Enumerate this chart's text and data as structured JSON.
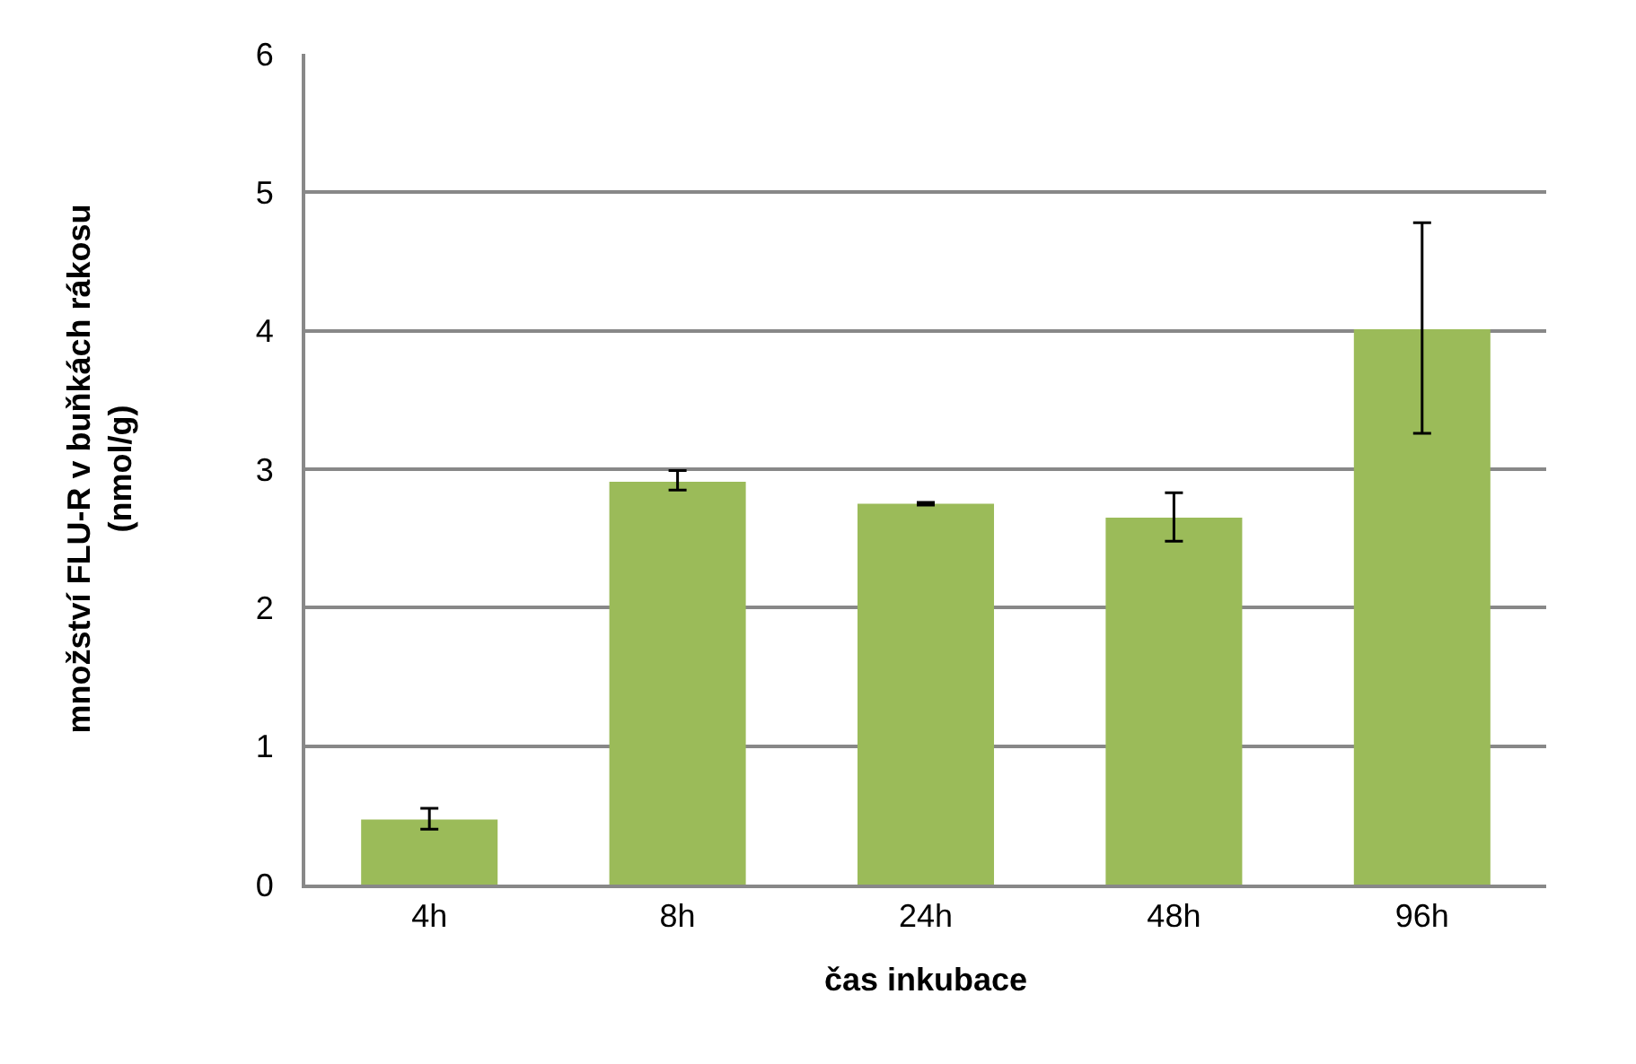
{
  "chart_data": {
    "type": "bar",
    "xlabel": "čas inkubace",
    "ylabel": "množství FLU-R v buňkách rákosu (nmol/g)",
    "categories": [
      "4h",
      "8h",
      "24h",
      "48h",
      "96h"
    ],
    "values": [
      0.47,
      2.91,
      2.75,
      2.65,
      4.01
    ],
    "errors": [
      [
        0.4,
        0.55
      ],
      [
        2.85,
        2.99
      ],
      [
        2.74,
        2.76
      ],
      [
        2.48,
        2.83
      ],
      [
        3.26,
        4.78
      ]
    ],
    "color": "#9bbb59",
    "ylim": [
      0,
      6
    ],
    "yticks": [
      0,
      1,
      2,
      3,
      4,
      5,
      6
    ],
    "grid": "y",
    "legend": false
  }
}
